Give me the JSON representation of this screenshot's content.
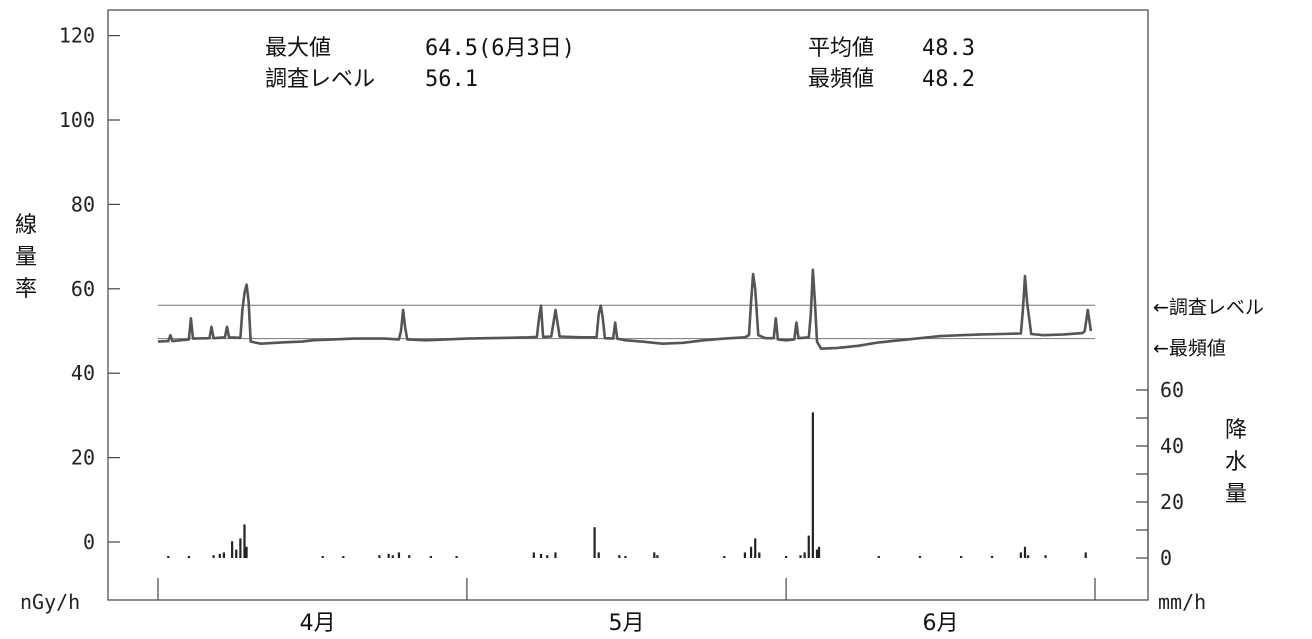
{
  "chart_data": {
    "type": "line",
    "stats": {
      "max_label": "最大値",
      "max_value": "64.5(6月3日)",
      "survey_label": "調査レベル",
      "survey_value": "56.1",
      "mean_label": "平均値",
      "mean_value": "48.3",
      "mode_label": "最頻値",
      "mode_value": "48.2"
    },
    "y_left": {
      "label_chars": [
        "線",
        "量",
        "率"
      ],
      "unit": "nGy/h",
      "ticks": [
        "120",
        "100",
        "80",
        "60",
        "40",
        "20",
        "0"
      ],
      "tick_values": [
        120,
        100,
        80,
        60,
        40,
        20,
        0
      ],
      "range": [
        -9,
        126
      ]
    },
    "y_right": {
      "label_chars": [
        "降",
        "水",
        "量"
      ],
      "unit": "mm/h",
      "ticks": [
        "60",
        "40",
        "20",
        "0"
      ],
      "tick_values": [
        60,
        40,
        20,
        0
      ],
      "range": [
        0,
        60
      ]
    },
    "x": {
      "labels": [
        "4月",
        "5月",
        "6月"
      ],
      "label_positions": [
        15.5,
        45.5,
        76.0
      ],
      "boundaries": [
        0,
        30,
        61,
        91
      ],
      "range": [
        0,
        91
      ]
    },
    "reference_lines": [
      {
        "name": "調査レベル",
        "label": "←調査レベル",
        "value": 56.1
      },
      {
        "name": "最頻値",
        "label": "←最頻値",
        "value": 48.2
      }
    ],
    "dose_rate": {
      "name": "線量率",
      "unit": "nGy/h",
      "points": [
        [
          0,
          47.5
        ],
        [
          1,
          47.6
        ],
        [
          1.2,
          49
        ],
        [
          1.4,
          47.6
        ],
        [
          3,
          48.0
        ],
        [
          3.2,
          53
        ],
        [
          3.4,
          48.2
        ],
        [
          5,
          48.3
        ],
        [
          5.2,
          51
        ],
        [
          5.4,
          48.3
        ],
        [
          6.5,
          48.5
        ],
        [
          6.7,
          51
        ],
        [
          6.9,
          48.5
        ],
        [
          8,
          48.4
        ],
        [
          8.2,
          55
        ],
        [
          8.4,
          59
        ],
        [
          8.6,
          61
        ],
        [
          8.8,
          57
        ],
        [
          9.0,
          47.5
        ],
        [
          10,
          47.0
        ],
        [
          12,
          47.3
        ],
        [
          14,
          47.5
        ],
        [
          15,
          47.8
        ],
        [
          17,
          48.0
        ],
        [
          19,
          48.2
        ],
        [
          22,
          48.2
        ],
        [
          23.4,
          48.0
        ],
        [
          23.6,
          50
        ],
        [
          23.8,
          55
        ],
        [
          24.0,
          51
        ],
        [
          24.2,
          48.0
        ],
        [
          26,
          47.8
        ],
        [
          28,
          48.0
        ],
        [
          30,
          48.2
        ],
        [
          32,
          48.3
        ],
        [
          34,
          48.4
        ],
        [
          36,
          48.5
        ],
        [
          36.8,
          48.6
        ],
        [
          37.0,
          53
        ],
        [
          37.2,
          56
        ],
        [
          37.4,
          48.6
        ],
        [
          38.2,
          48.7
        ],
        [
          38.6,
          55
        ],
        [
          39.0,
          48.7
        ],
        [
          41,
          48.5
        ],
        [
          42.6,
          48.5
        ],
        [
          42.8,
          54
        ],
        [
          43.0,
          56
        ],
        [
          43.2,
          53
        ],
        [
          43.4,
          48.3
        ],
        [
          44.2,
          48.2
        ],
        [
          44.4,
          52
        ],
        [
          44.6,
          48.2
        ],
        [
          45.4,
          47.8
        ],
        [
          47,
          47.5
        ],
        [
          49,
          47.0
        ],
        [
          51,
          47.2
        ],
        [
          53,
          47.8
        ],
        [
          55,
          48.2
        ],
        [
          57,
          48.5
        ],
        [
          57.4,
          49
        ],
        [
          57.6,
          57
        ],
        [
          57.8,
          63.5
        ],
        [
          58.0,
          60
        ],
        [
          58.3,
          49
        ],
        [
          59,
          48.3
        ],
        [
          59.8,
          48.3
        ],
        [
          60.0,
          53
        ],
        [
          60.2,
          48.0
        ],
        [
          61,
          47.8
        ],
        [
          61.8,
          48.0
        ],
        [
          62.0,
          52
        ],
        [
          62.2,
          48.3
        ],
        [
          63.2,
          48.5
        ],
        [
          63.4,
          54
        ],
        [
          63.6,
          64.5
        ],
        [
          63.8,
          57
        ],
        [
          64.0,
          47.5
        ],
        [
          64.4,
          45.8
        ],
        [
          66,
          46.0
        ],
        [
          68,
          46.5
        ],
        [
          70,
          47.3
        ],
        [
          72,
          47.8
        ],
        [
          74,
          48.3
        ],
        [
          76,
          48.8
        ],
        [
          78,
          49.0
        ],
        [
          80,
          49.2
        ],
        [
          82,
          49.3
        ],
        [
          83.8,
          49.4
        ],
        [
          84.0,
          55
        ],
        [
          84.2,
          63
        ],
        [
          84.4,
          57
        ],
        [
          84.8,
          49.3
        ],
        [
          86,
          49.0
        ],
        [
          88,
          49.2
        ],
        [
          89.8,
          49.5
        ],
        [
          90.0,
          50
        ],
        [
          90.3,
          55
        ],
        [
          90.6,
          50
        ]
      ]
    },
    "precipitation": {
      "name": "降水量",
      "unit": "mm/h",
      "bars": [
        [
          1,
          0.5
        ],
        [
          3,
          0.5
        ],
        [
          5.4,
          1
        ],
        [
          6,
          1.5
        ],
        [
          6.4,
          2
        ],
        [
          7.2,
          6
        ],
        [
          7.6,
          3
        ],
        [
          8.0,
          7
        ],
        [
          8.4,
          12
        ],
        [
          8.6,
          4
        ],
        [
          16,
          0.5
        ],
        [
          18,
          0.5
        ],
        [
          21.5,
          1
        ],
        [
          22.4,
          1.5
        ],
        [
          22.8,
          1
        ],
        [
          23.4,
          2
        ],
        [
          24.4,
          1
        ],
        [
          26.5,
          0.5
        ],
        [
          29,
          0.5
        ],
        [
          36.5,
          2
        ],
        [
          37.2,
          1.5
        ],
        [
          37.8,
          1
        ],
        [
          38.6,
          2
        ],
        [
          42.4,
          11
        ],
        [
          42.8,
          2
        ],
        [
          44.8,
          1
        ],
        [
          45.4,
          0.5
        ],
        [
          48.2,
          2
        ],
        [
          48.5,
          1
        ],
        [
          55,
          0.5
        ],
        [
          57,
          2
        ],
        [
          57.6,
          4
        ],
        [
          58.0,
          7
        ],
        [
          58.4,
          2
        ],
        [
          61,
          0.5
        ],
        [
          62.4,
          1
        ],
        [
          62.8,
          2
        ],
        [
          63.2,
          8
        ],
        [
          63.6,
          52
        ],
        [
          64.0,
          3
        ],
        [
          64.2,
          4
        ],
        [
          70,
          0.5
        ],
        [
          74,
          0.5
        ],
        [
          78,
          0.5
        ],
        [
          81,
          0.5
        ],
        [
          83.8,
          2
        ],
        [
          84.2,
          4
        ],
        [
          84.5,
          1
        ],
        [
          86.2,
          1
        ],
        [
          90.1,
          2
        ]
      ]
    }
  }
}
